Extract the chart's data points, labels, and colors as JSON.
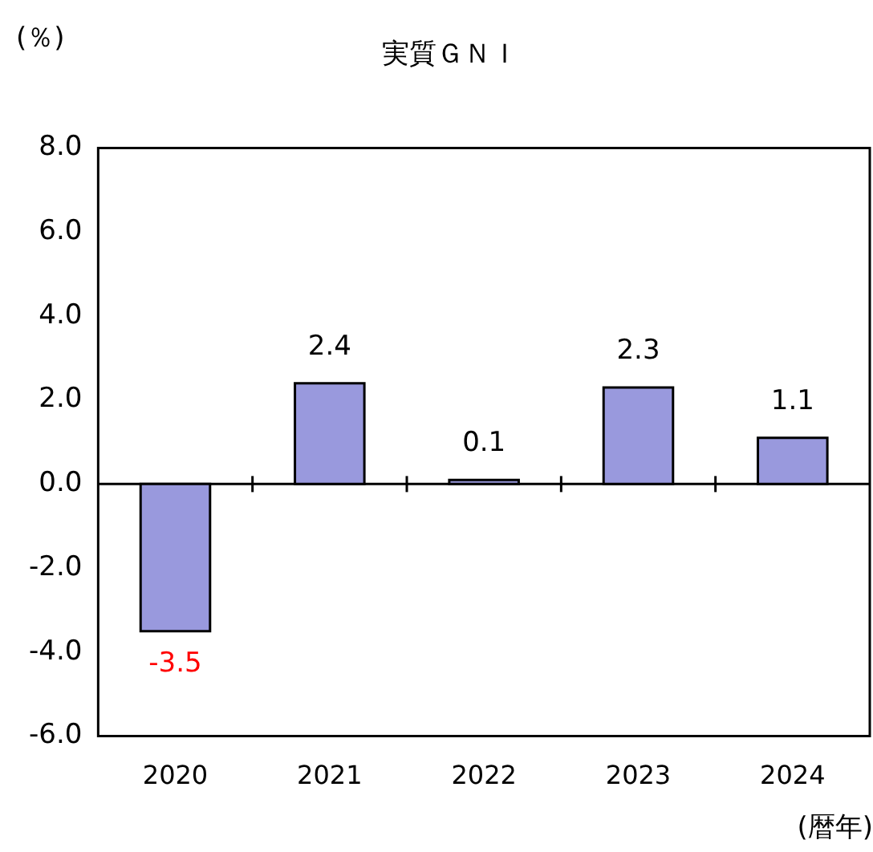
{
  "chart_data": {
    "type": "bar",
    "title": "実質ＧＮＩ",
    "ylabel": "(％)",
    "xlabel": "(暦年)",
    "categories": [
      "2020",
      "2021",
      "2022",
      "2023",
      "2024"
    ],
    "values": [
      -3.5,
      2.4,
      0.1,
      2.3,
      1.1
    ],
    "color": "#9999dd",
    "ylim": [
      -6,
      8
    ],
    "yticks": [
      {
        "value": -6,
        "label": "-6.0"
      },
      {
        "value": -4,
        "label": "-4.0"
      },
      {
        "value": -2,
        "label": "-2.0"
      },
      {
        "value": 0,
        "label": "0.0"
      },
      {
        "value": 2,
        "label": "2.0"
      },
      {
        "value": 4,
        "label": "4.0"
      },
      {
        "value": 6,
        "label": "6.0"
      },
      {
        "value": 8,
        "label": "8.0"
      }
    ],
    "ref_lines": [
      {
        "axis": "y",
        "value": 0
      }
    ],
    "data_labels": true,
    "grid": false,
    "legend": false
  }
}
